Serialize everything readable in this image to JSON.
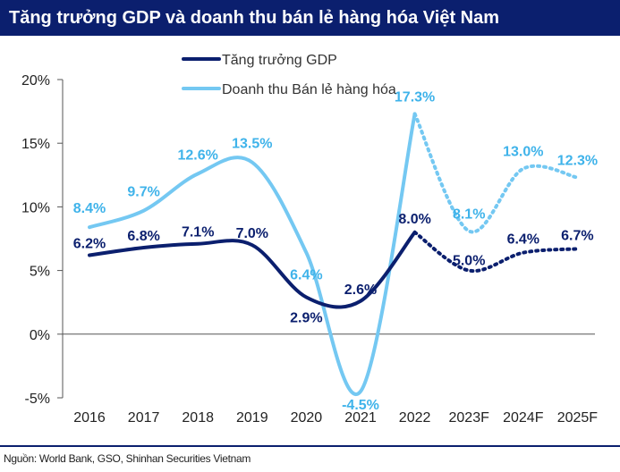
{
  "chart_data": {
    "type": "line",
    "title": "Tăng trưởng GDP và doanh thu bán lẻ hàng hóa Việt Nam",
    "categories": [
      "2016",
      "2017",
      "2018",
      "2019",
      "2020",
      "2021",
      "2022",
      "2023F",
      "2024F",
      "2025F"
    ],
    "y_ticks": [
      "20%",
      "15%",
      "10%",
      "5%",
      "0%",
      "-5%"
    ],
    "ylim": [
      -5,
      20
    ],
    "forecast_from_index": 6,
    "series": [
      {
        "name": "Tăng trưởng GDP",
        "color": "#0b1f6e",
        "values": [
          6.2,
          6.8,
          7.1,
          7.0,
          2.9,
          2.6,
          8.0,
          5.0,
          6.4,
          6.7
        ],
        "labels": [
          "6.2%",
          "6.8%",
          "7.1%",
          "7.0%",
          "2.9%",
          "2.6%",
          "8.0%",
          "5.0%",
          "6.4%",
          "6.7%"
        ]
      },
      {
        "name": "Doanh thu Bán lẻ hàng hóa",
        "color": "#74c8f2",
        "values": [
          8.4,
          9.7,
          12.6,
          13.5,
          6.4,
          -4.5,
          17.3,
          8.1,
          13.0,
          12.3
        ],
        "labels": [
          "8.4%",
          "9.7%",
          "12.6%",
          "13.5%",
          "6.4%",
          "-4.5%",
          "17.3%",
          "8.1%",
          "13.0%",
          "12.3%"
        ]
      }
    ],
    "legend": [
      "Tăng trưởng GDP",
      "Doanh thu Bán lẻ hàng hóa"
    ],
    "legend_position": "top-center",
    "grid": false
  },
  "footer": {
    "source": "Nguồn: World Bank, GSO, Shinhan Securities Vietnam"
  }
}
